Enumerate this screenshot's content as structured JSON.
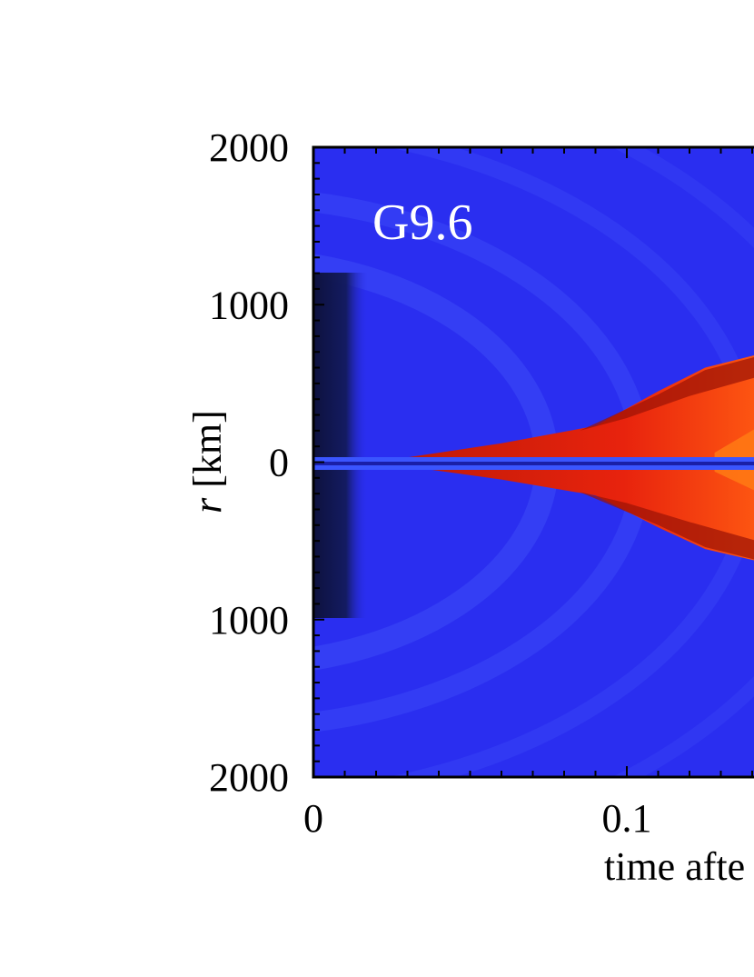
{
  "chart_data": {
    "type": "heatmap",
    "model_label": "G9.6",
    "xlabel": "time afte",
    "ylabel": {
      "italic_part": "r",
      "rest": " [km]"
    },
    "x_ticks": [
      {
        "value": 0,
        "label": "0"
      },
      {
        "value": 0.1,
        "label": "0.1"
      }
    ],
    "y_ticks": [
      {
        "value": 2000,
        "label": "2000"
      },
      {
        "value": 1000,
        "label": "1000"
      },
      {
        "value": 0,
        "label": "0"
      },
      {
        "value": -1000,
        "label": "1000"
      },
      {
        "value": -2000,
        "label": "2000"
      }
    ],
    "xlim": [
      0,
      0.145
    ],
    "ylim": [
      -2000,
      2000
    ],
    "colors": {
      "background_blue": "#2a2ef0",
      "bright_blue": "#4c62ff",
      "dark_core": "#0c1034",
      "hot_red": "#e8230d",
      "dark_red": "#9a1206",
      "orange_inner": "#ff7a14"
    },
    "shock_envelope_km": {
      "t": [
        0.03,
        0.06,
        0.09,
        0.11,
        0.125,
        0.145
      ],
      "r": [
        30,
        120,
        230,
        450,
        600,
        700
      ]
    }
  }
}
